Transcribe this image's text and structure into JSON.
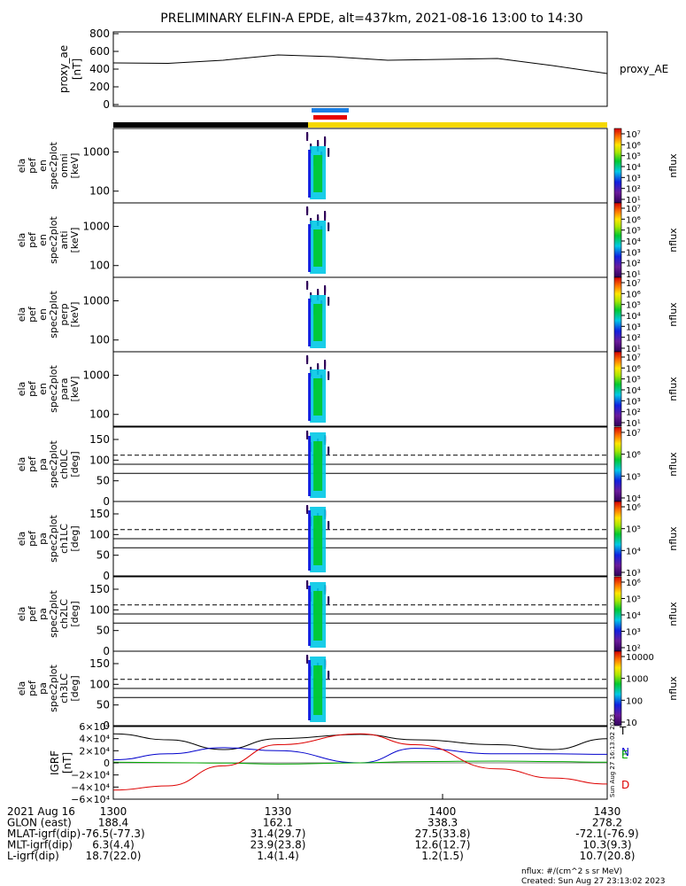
{
  "title": "PRELIMINARY ELFIN-A EPDE, alt=437km, 2021-08-16 13:00 to 14:30",
  "chart_data": [
    {
      "type": "line",
      "panel": "proxy_ae",
      "ylabel": [
        "proxy_ae",
        "[nT]"
      ],
      "legend": "proxy_AE",
      "ylim": [
        0,
        800
      ],
      "yticks": [
        "0",
        "200",
        "400",
        "600",
        "800"
      ],
      "x": [
        0,
        10,
        20,
        30,
        40,
        50,
        60,
        70,
        80,
        90
      ],
      "y": [
        470,
        465,
        500,
        560,
        540,
        500,
        510,
        520,
        440,
        350
      ]
    },
    {
      "type": "heatmap",
      "panel": "omni",
      "ylabel": [
        "ela",
        "pef",
        "en",
        "spec2plot",
        "omni",
        "[keV]"
      ],
      "yscale": "log",
      "yticks": [
        "100",
        "1000"
      ],
      "colorbar_label": "nflux",
      "colorbar_ticks": [
        "10⁷",
        "10⁶",
        "10⁵",
        "10⁴",
        "10³",
        "10²",
        "10¹"
      ]
    },
    {
      "type": "heatmap",
      "panel": "anti",
      "ylabel": [
        "ela",
        "pef",
        "en",
        "spec2plot",
        "anti",
        "[keV]"
      ],
      "yscale": "log",
      "yticks": [
        "100",
        "1000"
      ],
      "colorbar_label": "nflux",
      "colorbar_ticks": [
        "10⁷",
        "10⁶",
        "10⁵",
        "10⁴",
        "10³",
        "10²",
        "10¹"
      ]
    },
    {
      "type": "heatmap",
      "panel": "perp",
      "ylabel": [
        "ela",
        "pef",
        "en",
        "spec2plot",
        "perp",
        "[keV]"
      ],
      "yscale": "log",
      "yticks": [
        "100",
        "1000"
      ],
      "colorbar_label": "nflux",
      "colorbar_ticks": [
        "10⁷",
        "10⁶",
        "10⁵",
        "10⁴",
        "10³",
        "10²",
        "10¹"
      ]
    },
    {
      "type": "heatmap",
      "panel": "para",
      "ylabel": [
        "ela",
        "pef",
        "en",
        "spec2plot",
        "para",
        "[keV]"
      ],
      "yscale": "log",
      "yticks": [
        "100",
        "1000"
      ],
      "colorbar_label": "nflux",
      "colorbar_ticks": [
        "10⁷",
        "10⁶",
        "10⁵",
        "10⁴",
        "10³",
        "10²",
        "10¹"
      ]
    },
    {
      "type": "heatmap",
      "panel": "ch0LC",
      "ylabel": [
        "ela",
        "pef",
        "pa",
        "spec2plot",
        "ch0LC",
        "[deg]"
      ],
      "ylim": [
        0,
        180
      ],
      "yticks": [
        "0",
        "50",
        "100",
        "150"
      ],
      "colorbar_label": "nflux",
      "colorbar_ticks": [
        "10⁷",
        "10⁶",
        "10⁵",
        "10⁴"
      ]
    },
    {
      "type": "heatmap",
      "panel": "ch1LC",
      "ylabel": [
        "ela",
        "pef",
        "pa",
        "spec2plot",
        "ch1LC",
        "[deg]"
      ],
      "ylim": [
        0,
        180
      ],
      "yticks": [
        "0",
        "50",
        "100",
        "150"
      ],
      "colorbar_label": "nflux",
      "colorbar_ticks": [
        "10⁶",
        "10⁵",
        "10⁴",
        "10³"
      ]
    },
    {
      "type": "heatmap",
      "panel": "ch2LC",
      "ylabel": [
        "ela",
        "pef",
        "pa",
        "spec2plot",
        "ch2LC",
        "[deg]"
      ],
      "ylim": [
        0,
        180
      ],
      "yticks": [
        "0",
        "50",
        "100",
        "150"
      ],
      "colorbar_label": "nflux",
      "colorbar_ticks": [
        "10⁶",
        "10⁵",
        "10⁴",
        "10³",
        "10²"
      ]
    },
    {
      "type": "heatmap",
      "panel": "ch3LC",
      "ylabel": [
        "ela",
        "pef",
        "pa",
        "spec2plot",
        "ch3LC",
        "[deg]"
      ],
      "ylim": [
        0,
        180
      ],
      "yticks": [
        "0",
        "50",
        "100",
        "150"
      ],
      "colorbar_label": "nflux",
      "colorbar_ticks": [
        "10000",
        "1000",
        "100",
        "10"
      ]
    },
    {
      "type": "line",
      "panel": "igrf",
      "ylabel": [
        "IGRF",
        "[nT]"
      ],
      "ylim": [
        -60000,
        60000
      ],
      "yticks": [
        "6×10⁴",
        "4×10⁴",
        "2×10⁴",
        "0",
        "−2×10⁴",
        "−4×10⁴",
        "−6×10⁴"
      ],
      "legend": [
        "T",
        "N",
        "E",
        "D"
      ],
      "series": [
        {
          "name": "T",
          "color": "#000000",
          "x": [
            0,
            10,
            20,
            30,
            45,
            55,
            70,
            80,
            90
          ],
          "y": [
            48000,
            38000,
            22000,
            40000,
            47000,
            38000,
            30000,
            22000,
            40000
          ]
        },
        {
          "name": "N",
          "color": "#0000cc",
          "x": [
            0,
            10,
            20,
            30,
            45,
            55,
            70,
            80,
            90
          ],
          "y": [
            5000,
            15000,
            25000,
            20000,
            0,
            24000,
            15000,
            15000,
            14000
          ]
        },
        {
          "name": "E",
          "color": "#00aa00",
          "x": [
            0,
            10,
            20,
            30,
            45,
            55,
            70,
            80,
            90
          ],
          "y": [
            1000,
            500,
            -500,
            -2000,
            0,
            2000,
            3000,
            2000,
            1000
          ]
        },
        {
          "name": "D",
          "color": "#dd0000",
          "x": [
            0,
            10,
            20,
            30,
            45,
            55,
            70,
            80,
            90
          ],
          "y": [
            -45000,
            -38000,
            -5000,
            30000,
            48000,
            30000,
            -10000,
            -25000,
            -35000
          ]
        }
      ]
    }
  ],
  "footer": {
    "rows": [
      {
        "label": "2021 Aug 16",
        "values": [
          "1300",
          "1330",
          "1400",
          "1430"
        ]
      },
      {
        "label": "GLON (east)",
        "values": [
          "188.4",
          "162.1",
          "338.3",
          "278.2"
        ]
      },
      {
        "label": "MLAT-igrf(dip)",
        "values": [
          "-76.5(-77.3)",
          "31.4(29.7)",
          "27.5(33.8)",
          "-72.1(-76.9)"
        ]
      },
      {
        "label": "MLT-igrf(dip)",
        "values": [
          "6.3(4.4)",
          "23.9(23.8)",
          "12.6(12.7)",
          "10.3(9.3)"
        ]
      },
      {
        "label": "L-igrf(dip)",
        "values": [
          "18.7(22.0)",
          "1.4(1.4)",
          "1.2(1.5)",
          "10.7(20.8)"
        ]
      }
    ],
    "nflux_units": "nflux: #/(cm^2 s sr MeV)",
    "created": "Created: Sun Aug 27 23:13:02 2023",
    "side_stamp": "Sun Aug 27 16:13:02 2023"
  }
}
